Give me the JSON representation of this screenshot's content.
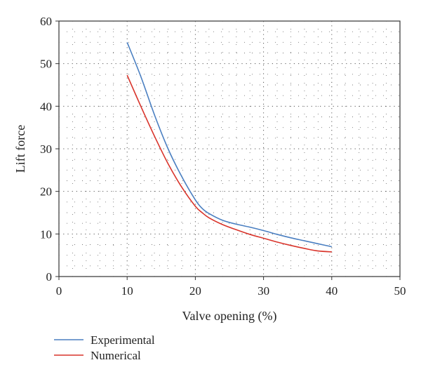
{
  "chart_data": {
    "type": "line",
    "xlabel": "Valve opening (%)",
    "ylabel": "Lift force",
    "xlim": [
      0,
      50
    ],
    "ylim": [
      0,
      60
    ],
    "xticks": [
      0,
      10,
      20,
      30,
      40,
      50
    ],
    "yticks": [
      0,
      10,
      20,
      30,
      40,
      50,
      60
    ],
    "grid": "dotted",
    "legend_position": "bottom-left, below plot",
    "series": [
      {
        "name": "Experimental",
        "color": "#4a7fc1",
        "x": [
          10,
          12,
          14,
          16,
          18,
          20,
          21,
          22,
          24,
          26,
          28,
          30,
          32,
          34,
          36,
          38,
          40
        ],
        "y": [
          55,
          47,
          38,
          30,
          23.5,
          18,
          16,
          14.8,
          13.2,
          12.3,
          11.6,
          10.8,
          9.9,
          9.1,
          8.4,
          7.7,
          7
        ]
      },
      {
        "name": "Numerical",
        "color": "#d9342b",
        "x": [
          10,
          12,
          14,
          16,
          18,
          20,
          21,
          22,
          24,
          26,
          28,
          30,
          32,
          34,
          36,
          38,
          40
        ],
        "y": [
          47.3,
          40,
          33,
          26.5,
          21,
          16.5,
          15,
          13.8,
          12.2,
          11,
          9.9,
          9,
          8.1,
          7.3,
          6.6,
          6,
          5.8
        ]
      }
    ]
  }
}
